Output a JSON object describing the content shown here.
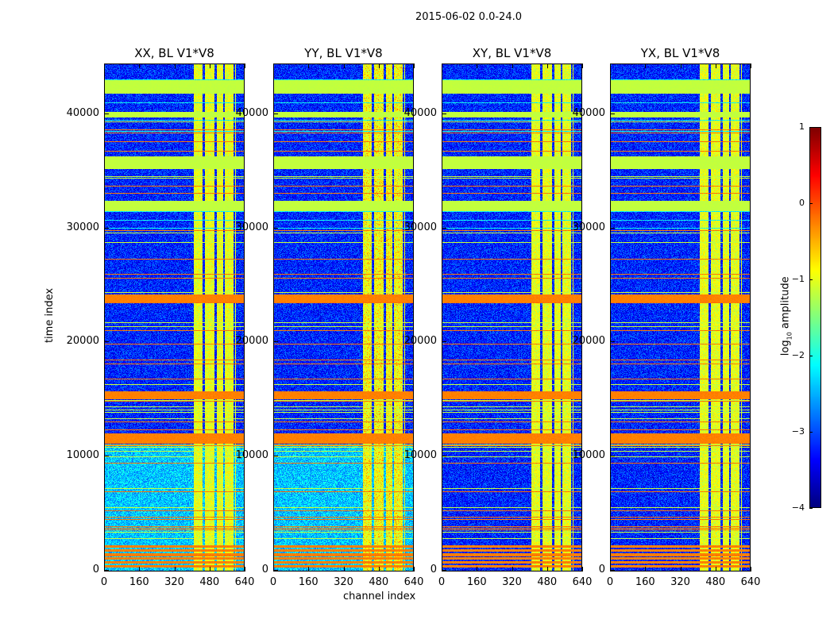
{
  "chart_data": {
    "type": "heatmap",
    "title": "2015-06-02 0.0-24.0",
    "xlabel": "channel index",
    "ylabel": "time index",
    "xlim": [
      0,
      640
    ],
    "ylim": [
      0,
      44500
    ],
    "xticks": [
      "0",
      "160",
      "320",
      "480",
      "640"
    ],
    "xtick_values": [
      0,
      160,
      320,
      480,
      640
    ],
    "yticks": [
      "0",
      "10000",
      "20000",
      "30000",
      "40000"
    ],
    "ytick_values": [
      0,
      10000,
      20000,
      30000,
      40000
    ],
    "panels": [
      {
        "title": "XX, BL V1*V8",
        "low_time_cyan": true
      },
      {
        "title": "YY, BL V1*V8",
        "low_time_cyan": true
      },
      {
        "title": "XY, BL V1*V8",
        "low_time_cyan": false
      },
      {
        "title": "YX, BL V1*V8",
        "low_time_cyan": false
      }
    ],
    "features": {
      "background_log_amplitude": -3.2,
      "bright_channel_range": [
        405,
        600
      ],
      "bright_channel_value": -1.0,
      "flagged_green_time_ranges": [
        [
          41900,
          43100
        ],
        [
          39800,
          40300
        ],
        [
          35300,
          36400
        ],
        [
          31600,
          32500
        ]
      ],
      "orange_time_ranges": [
        [
          23600,
          24300
        ],
        [
          15100,
          15800
        ],
        [
          11200,
          12100
        ],
        [
          400,
          2300
        ]
      ],
      "flag_value": -1.2,
      "orange_value": -0.3
    },
    "colorbar": {
      "cmap": "jet",
      "range": [
        -4,
        1
      ],
      "ticks": [
        "1",
        "0",
        "−1",
        "−2",
        "−3",
        "−4"
      ],
      "tick_values": [
        1,
        0,
        -1,
        -2,
        -3,
        -4
      ],
      "label_prefix": "log",
      "label_sub": "10",
      "label_suffix": " amplitude"
    }
  }
}
